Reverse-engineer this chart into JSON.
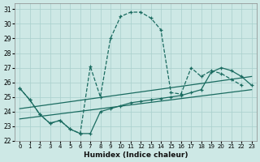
{
  "xlabel": "Humidex (Indice chaleur)",
  "background_color": "#cde8e5",
  "grid_color": "#a8cfcc",
  "line_color": "#1a6b60",
  "xlim": [
    -0.5,
    23.5
  ],
  "ylim": [
    22,
    31.4
  ],
  "xticks": [
    0,
    1,
    2,
    3,
    4,
    5,
    6,
    7,
    8,
    9,
    10,
    11,
    12,
    13,
    14,
    15,
    16,
    17,
    18,
    19,
    20,
    21,
    22,
    23
  ],
  "yticks": [
    22,
    23,
    24,
    25,
    26,
    27,
    28,
    29,
    30,
    31
  ],
  "main_x": [
    0,
    1,
    2,
    3,
    4,
    5,
    6,
    7,
    8,
    9,
    10,
    11,
    12,
    13,
    14,
    15,
    16,
    17,
    18,
    19,
    20,
    21,
    22
  ],
  "main_y": [
    25.6,
    24.8,
    23.8,
    23.2,
    23.4,
    22.8,
    22.5,
    27.1,
    25.0,
    29.0,
    30.5,
    30.8,
    30.8,
    30.4,
    29.6,
    25.3,
    25.2,
    27.0,
    26.4,
    26.8,
    26.6,
    26.2,
    25.8
  ],
  "zigzag_x": [
    0,
    1,
    2,
    3,
    4,
    5,
    6,
    7,
    8,
    9,
    10,
    11,
    12,
    13,
    14,
    15,
    16,
    17,
    18,
    19,
    20,
    21,
    22,
    23
  ],
  "zigzag_y": [
    25.6,
    24.8,
    23.8,
    23.2,
    23.4,
    22.8,
    22.5,
    22.5,
    24.0,
    24.2,
    24.4,
    24.6,
    24.7,
    24.8,
    24.9,
    25.0,
    25.1,
    25.3,
    25.5,
    26.7,
    27.0,
    26.8,
    26.4,
    25.8
  ],
  "trend1_x": [
    0,
    23
  ],
  "trend1_y": [
    23.5,
    25.5
  ],
  "trend2_x": [
    0,
    23
  ],
  "trend2_y": [
    24.2,
    26.4
  ]
}
